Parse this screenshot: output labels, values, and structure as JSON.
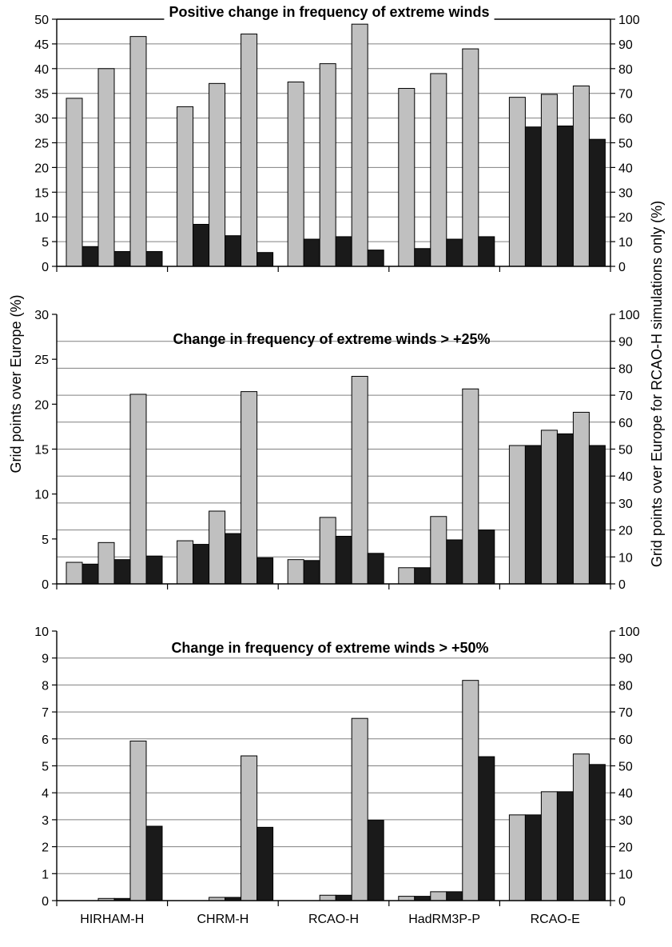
{
  "y_label_left": "Grid points over Europe (%)",
  "y_label_right": "Grid points over Europe for RCAO-H simulations only (%)",
  "colors": {
    "grey": "#c0c0c0",
    "black": "#1a1a1a",
    "axis": "#000000",
    "grid": "#808080"
  },
  "chart_data": [
    {
      "type": "bar",
      "title": "Positive change in frequency of extreme winds",
      "categories": [
        "HIRHAM-H",
        "CHRM-H",
        "RCAO-H",
        "HadRM3P-P",
        "RCAO-E"
      ],
      "ylim": [
        0,
        50
      ],
      "ylim_right": [
        0,
        100
      ],
      "yticks": [
        0,
        5,
        10,
        15,
        20,
        25,
        30,
        35,
        40,
        45,
        50
      ],
      "yticks_right": [
        0,
        10,
        20,
        30,
        40,
        50,
        60,
        70,
        80,
        90,
        100
      ],
      "grid": true,
      "bars": [
        [
          [
            34.0,
            4.0
          ],
          [
            40.0,
            3.0
          ],
          [
            46.5,
            3.0
          ]
        ],
        [
          [
            32.3,
            8.5
          ],
          [
            37.0,
            6.2
          ],
          [
            47.0,
            2.8
          ]
        ],
        [
          [
            37.3,
            5.5
          ],
          [
            41.0,
            6.0
          ],
          [
            49.0,
            3.3
          ]
        ],
        [
          [
            36.0,
            3.6
          ],
          [
            39.0,
            5.5
          ],
          [
            44.0,
            6.0
          ]
        ],
        [
          [
            34.2,
            28.2
          ],
          [
            34.8,
            28.4
          ],
          [
            36.5,
            25.7
          ]
        ]
      ]
    },
    {
      "type": "bar",
      "title": "Change in frequency of extreme winds > +25%",
      "categories": [
        "HIRHAM-H",
        "CHRM-H",
        "RCAO-H",
        "HadRM3P-P",
        "RCAO-E"
      ],
      "ylim": [
        0,
        30
      ],
      "ylim_right": [
        0,
        100
      ],
      "yticks": [
        0,
        5,
        10,
        15,
        20,
        25,
        30
      ],
      "yticks_right": [
        0,
        10,
        20,
        30,
        40,
        50,
        60,
        70,
        80,
        90,
        100
      ],
      "grid": true,
      "bars": [
        [
          [
            2.4,
            2.2
          ],
          [
            4.6,
            2.7
          ],
          [
            21.1,
            3.1
          ]
        ],
        [
          [
            4.8,
            4.4
          ],
          [
            8.1,
            5.6
          ],
          [
            21.4,
            2.9
          ]
        ],
        [
          [
            2.7,
            2.6
          ],
          [
            7.4,
            5.3
          ],
          [
            23.1,
            3.4
          ]
        ],
        [
          [
            1.8,
            1.8
          ],
          [
            7.5,
            4.9
          ],
          [
            21.7,
            6.0
          ]
        ],
        [
          [
            15.4,
            15.4
          ],
          [
            17.1,
            16.7
          ],
          [
            19.1,
            15.4
          ]
        ]
      ]
    },
    {
      "type": "bar",
      "title": "Change in frequency of extreme winds > +50%",
      "categories": [
        "HIRHAM-H",
        "CHRM-H",
        "RCAO-H",
        "HadRM3P-P",
        "RCAO-E"
      ],
      "ylim": [
        0,
        10
      ],
      "ylim_right": [
        0,
        100
      ],
      "yticks": [
        0,
        1,
        2,
        3,
        4,
        5,
        6,
        7,
        8,
        9,
        10
      ],
      "yticks_right": [
        0,
        10,
        20,
        30,
        40,
        50,
        60,
        70,
        80,
        90,
        100
      ],
      "grid": true,
      "bars": [
        [
          [
            0.0,
            0.0
          ],
          [
            0.08,
            0.08
          ],
          [
            5.92,
            2.76
          ]
        ],
        [
          [
            0.0,
            0.0
          ],
          [
            0.12,
            0.12
          ],
          [
            5.37,
            2.72
          ]
        ],
        [
          [
            0.0,
            0.0
          ],
          [
            0.2,
            0.2
          ],
          [
            6.76,
            2.98
          ]
        ],
        [
          [
            0.16,
            0.16
          ],
          [
            0.33,
            0.33
          ],
          [
            8.17,
            5.34
          ]
        ],
        [
          [
            3.18,
            3.18
          ],
          [
            4.04,
            4.04
          ],
          [
            5.44,
            5.05
          ]
        ]
      ]
    }
  ]
}
